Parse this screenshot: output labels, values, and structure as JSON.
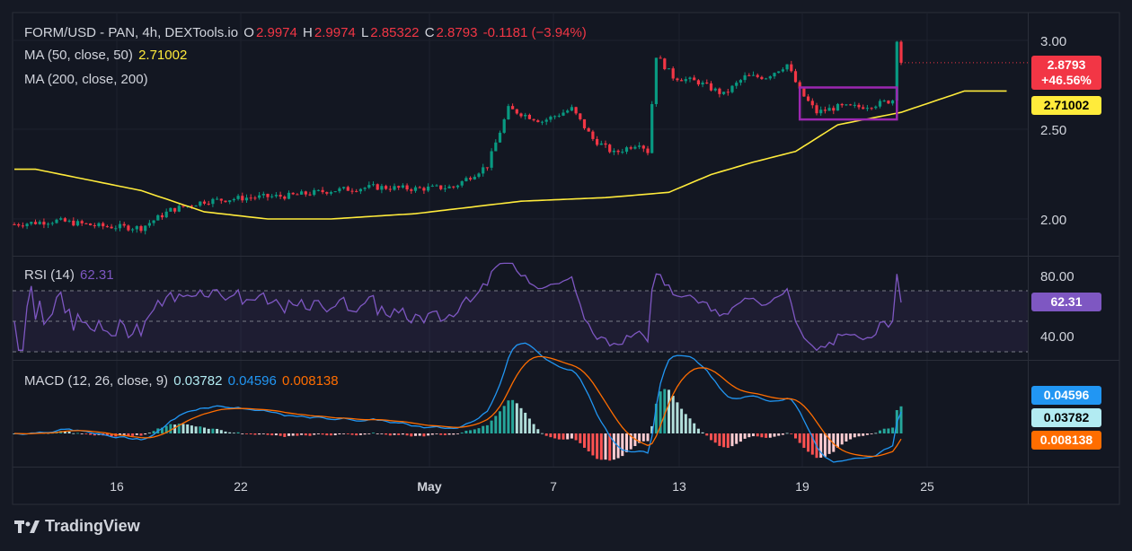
{
  "header": {
    "symbol": "FORM/USD - PAN, 4h, DEXTools.io",
    "o_label": "O",
    "o_value": "2.9974",
    "h_label": "H",
    "h_value": "2.9974",
    "l_label": "L",
    "l_value": "2.85322",
    "c_label": "C",
    "c_value": "2.8793",
    "change": "-0.1181 (−3.94%)",
    "ma50_label": "MA (50, close, 50)",
    "ma50_value": "2.71002",
    "ma200_label": "MA (200, close, 200)"
  },
  "rsi": {
    "label": "RSI (14)",
    "value": "62.31"
  },
  "macd": {
    "label": "MACD (12, 26, close, 9)",
    "macd_value": "0.03782",
    "signal_value": "0.04596",
    "hist_value": "0.008138"
  },
  "price_tags": {
    "last": "2.8793",
    "pct": "+46.56%",
    "ma50": "2.71002"
  },
  "rsi_tag": "62.31",
  "macd_tags": {
    "signal": "0.04596",
    "macd": "0.03782",
    "hist": "0.008138"
  },
  "brand": "TradingView",
  "colors": {
    "up": "#089981",
    "down": "#f23645",
    "ma": "#ffeb3b",
    "rsi": "#7e57c2",
    "macd": "#2196f3",
    "signal": "#ff6d00",
    "box": "#9c27b0"
  },
  "chart_data": {
    "type": "candlestick",
    "x_ticks": [
      "16",
      "22",
      "May",
      "7",
      "13",
      "19",
      "25"
    ],
    "price_ticks": [
      "3.00",
      "2.50",
      "2.00"
    ],
    "rsi_ticks": [
      "80.00",
      "40.00"
    ],
    "price_keypoints": [
      [
        0,
        1.97
      ],
      [
        10,
        1.99
      ],
      [
        20,
        1.96
      ],
      [
        30,
        1.95
      ],
      [
        37,
        2.05
      ],
      [
        45,
        2.1
      ],
      [
        55,
        2.12
      ],
      [
        65,
        2.13
      ],
      [
        75,
        2.16
      ],
      [
        85,
        2.18
      ],
      [
        95,
        2.17
      ],
      [
        104,
        2.18
      ],
      [
        112,
        2.3
      ],
      [
        117,
        2.62
      ],
      [
        125,
        2.55
      ],
      [
        132,
        2.62
      ],
      [
        137,
        2.45
      ],
      [
        142,
        2.37
      ],
      [
        148,
        2.43
      ],
      [
        150,
        2.38
      ],
      [
        152,
        2.92
      ],
      [
        156,
        2.8
      ],
      [
        162,
        2.77
      ],
      [
        168,
        2.7
      ],
      [
        173,
        2.8
      ],
      [
        178,
        2.8
      ],
      [
        183,
        2.87
      ],
      [
        186,
        2.72
      ],
      [
        190,
        2.6
      ],
      [
        195,
        2.63
      ],
      [
        200,
        2.63
      ],
      [
        205,
        2.65
      ],
      [
        208,
        2.67
      ],
      [
        209,
        2.97
      ],
      [
        210,
        2.88
      ]
    ],
    "ma200_keypoints": [
      [
        5,
        2.28
      ],
      [
        30,
        2.16
      ],
      [
        45,
        2.04
      ],
      [
        60,
        2.0
      ],
      [
        75,
        2.0
      ],
      [
        95,
        2.03
      ],
      [
        120,
        2.1
      ],
      [
        140,
        2.12
      ],
      [
        155,
        2.15
      ],
      [
        165,
        2.25
      ],
      [
        175,
        2.32
      ],
      [
        185,
        2.38
      ],
      [
        195,
        2.53
      ],
      [
        210,
        2.6
      ],
      [
        225,
        2.72
      ],
      [
        235,
        2.72
      ]
    ],
    "box": {
      "price_low": 2.56,
      "price_high": 2.74,
      "bar_start": 186,
      "bar_end": 209
    },
    "rsi_range": [
      30,
      90
    ],
    "rsi_levels": [
      70,
      50,
      30
    ],
    "macd_range": [
      -0.04,
      0.12
    ]
  }
}
